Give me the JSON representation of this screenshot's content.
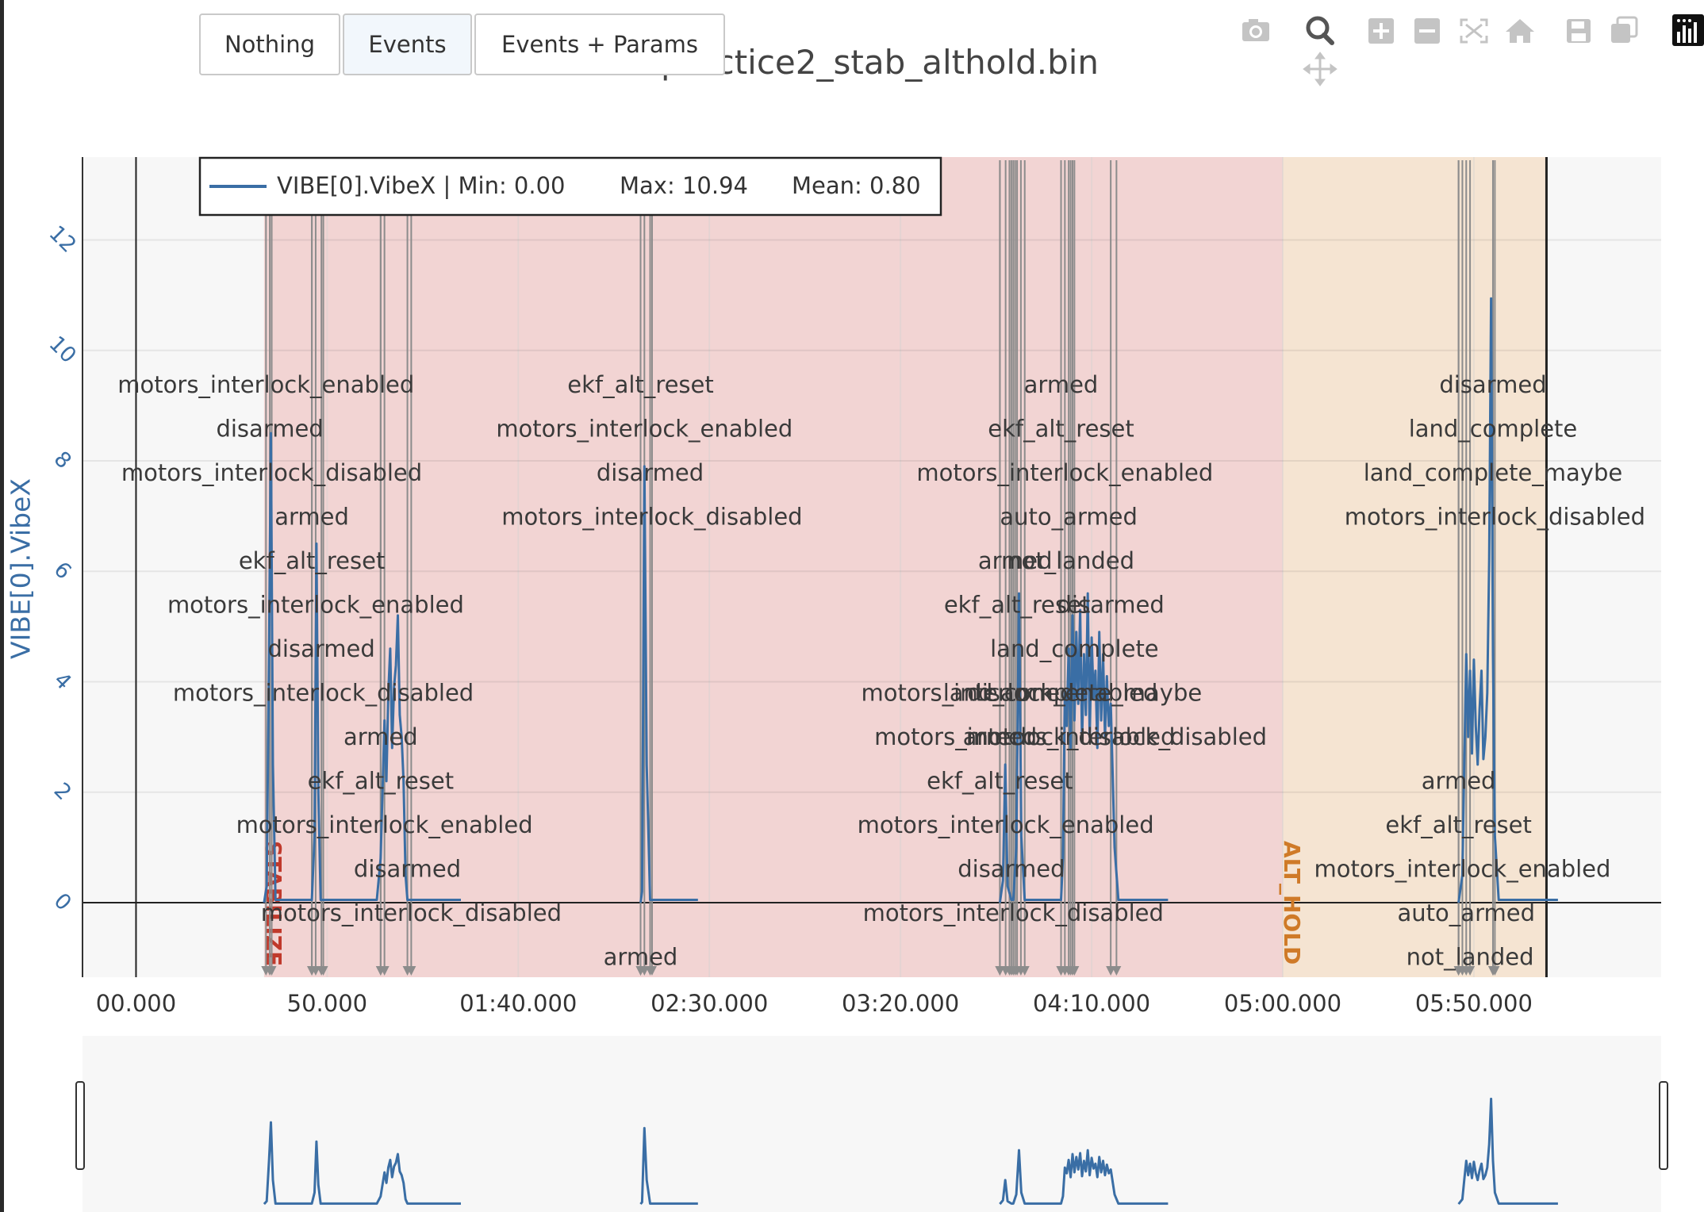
{
  "toolbar": {
    "buttons": [
      {
        "label": "Nothing",
        "active": false
      },
      {
        "label": "Events",
        "active": true
      },
      {
        "label": "Events + Params",
        "active": false
      }
    ],
    "modebar_icons": [
      "camera-icon",
      "zoom-icon",
      "pan-icon",
      "zoom-in-icon",
      "zoom-out-icon",
      "autoscale-icon",
      "home-icon",
      "save-icon",
      "compare-icon",
      "plotly-logo-icon"
    ]
  },
  "plot": {
    "title": "practice2_stab_althold.bin"
  },
  "colors": {
    "line": "#3a6ea5",
    "event_line": "#8c8c8c",
    "stabilize_band": "#f2d4d3",
    "althold_band": "#f5e4d2",
    "stabilize_label": "#c0392b",
    "althold_label": "#cf7a28",
    "plot_bg": "#f7f7f7"
  },
  "chart_data": {
    "type": "line",
    "title": "practice2_stab_althold.bin",
    "xlabel": "",
    "ylabel": "VIBE[0].VibeX",
    "xlim": [
      -14,
      399
    ],
    "ylim": [
      -1.35,
      13.5
    ],
    "x_ticks": [
      0,
      50,
      100,
      150,
      200,
      250,
      300,
      350
    ],
    "x_tick_labels": [
      "00.000",
      "50.000",
      "01:40.000",
      "02:30.000",
      "03:20.000",
      "04:10.000",
      "05:00.000",
      "05:50.000"
    ],
    "y_ticks": [
      0,
      2,
      4,
      6,
      8,
      10,
      12
    ],
    "legend": {
      "placement": "top-left",
      "series": "VIBE[0].VibeX | Min: 0.00",
      "max": "Max: 10.94",
      "mean": "Mean: 0.80"
    },
    "grid": true,
    "modes": [
      {
        "name": "STABILIZE",
        "start": 33.5,
        "end": 300
      },
      {
        "name": "ALT_HOLD",
        "start": 300,
        "end": 369
      }
    ],
    "series": [
      {
        "name": "VIBE[0].VibeX",
        "segments": [
          [
            [
              33.5,
              0
            ],
            [
              34.2,
              0.3
            ],
            [
              34.8,
              4.5
            ],
            [
              35.3,
              8.5
            ],
            [
              35.8,
              2.5
            ],
            [
              36.5,
              0.05
            ],
            [
              40,
              0.05
            ],
            [
              46,
              0.05
            ],
            [
              46.7,
              1.2
            ],
            [
              47.2,
              6.5
            ],
            [
              47.7,
              2.0
            ],
            [
              48.3,
              0.05
            ],
            [
              52,
              0.05
            ],
            [
              57,
              0.05
            ],
            [
              63,
              0.05
            ],
            [
              64,
              0.8
            ],
            [
              65,
              3.3
            ],
            [
              65.5,
              2.2
            ],
            [
              66,
              3.8
            ],
            [
              66.5,
              4.6
            ],
            [
              67,
              2.8
            ],
            [
              67.5,
              3.9
            ],
            [
              68,
              4.3
            ],
            [
              68.5,
              5.2
            ],
            [
              69,
              3.4
            ],
            [
              69.5,
              3.0
            ],
            [
              70,
              2.2
            ],
            [
              70.5,
              0.5
            ],
            [
              71,
              0.05
            ],
            [
              85,
              0.05
            ]
          ],
          [
            [
              132,
              0
            ],
            [
              132.4,
              0.2
            ],
            [
              133,
              7.9
            ],
            [
              133.6,
              2.5
            ],
            [
              134.5,
              0.05
            ],
            [
              147,
              0.05
            ]
          ],
          [
            [
              226,
              0
            ],
            [
              226.8,
              0.4
            ],
            [
              227.4,
              2.5
            ],
            [
              228,
              0.3
            ],
            [
              229,
              0.05
            ],
            [
              229.5,
              0.05
            ],
            [
              230.3,
              1.0
            ],
            [
              231,
              5.6
            ],
            [
              231.6,
              1.2
            ],
            [
              232.5,
              0.05
            ],
            [
              242,
              0.05
            ],
            [
              242.5,
              0.8
            ],
            [
              243,
              3.8
            ],
            [
              243.5,
              3.2
            ],
            [
              244,
              4.6
            ],
            [
              244.5,
              2.8
            ],
            [
              245,
              5.2
            ],
            [
              245.5,
              3.3
            ],
            [
              246,
              4.9
            ],
            [
              246.5,
              3.6
            ],
            [
              247,
              5.3
            ],
            [
              247.5,
              2.9
            ],
            [
              248,
              4.5
            ],
            [
              248.5,
              3.4
            ],
            [
              249,
              5.6
            ],
            [
              249.5,
              3.0
            ],
            [
              250,
              4.8
            ],
            [
              250.5,
              3.7
            ],
            [
              251,
              4.2
            ],
            [
              251.5,
              2.8
            ],
            [
              252,
              4.9
            ],
            [
              252.5,
              3.3
            ],
            [
              253,
              4.5
            ],
            [
              253.5,
              3.0
            ],
            [
              254,
              4.1
            ],
            [
              254.5,
              3.2
            ],
            [
              255,
              3.6
            ],
            [
              256,
              1.0
            ],
            [
              257,
              0.05
            ],
            [
              270,
              0.05
            ]
          ],
          [
            [
              346,
              0
            ],
            [
              347,
              0.5
            ],
            [
              347.5,
              2.6
            ],
            [
              348,
              4.5
            ],
            [
              348.5,
              3.0
            ],
            [
              349,
              4.2
            ],
            [
              349.5,
              2.7
            ],
            [
              350,
              4.4
            ],
            [
              350.5,
              3.2
            ],
            [
              351,
              2.5
            ],
            [
              351.5,
              3.5
            ],
            [
              352,
              4.2
            ],
            [
              352.5,
              2.6
            ],
            [
              353,
              3.0
            ],
            [
              353.5,
              3.8
            ],
            [
              354,
              6.2
            ],
            [
              354.5,
              10.94
            ],
            [
              355,
              4.5
            ],
            [
              355.5,
              1.2
            ],
            [
              356.5,
              0.05
            ],
            [
              372,
              0.05
            ]
          ]
        ]
      }
    ],
    "events": [
      {
        "x": 34.0,
        "label": "motors_interlock_enabled",
        "row": 0
      },
      {
        "x": 35.0,
        "label": "disarmed",
        "row": 1
      },
      {
        "x": 35.5,
        "label": "motors_interlock_disabled",
        "row": 2
      },
      {
        "x": 46.0,
        "label": "armed",
        "row": 3
      },
      {
        "x": 46.0,
        "label": "ekf_alt_reset",
        "row": 4
      },
      {
        "x": 47.0,
        "label": "motors_interlock_enabled",
        "row": 5
      },
      {
        "x": 48.5,
        "label": "disarmed",
        "row": 6
      },
      {
        "x": 49.0,
        "label": "motors_interlock_disabled",
        "row": 7
      },
      {
        "x": 64.0,
        "label": "armed",
        "row": 8
      },
      {
        "x": 64.0,
        "label": "ekf_alt_reset",
        "row": 9
      },
      {
        "x": 65.0,
        "label": "motors_interlock_enabled",
        "row": 10
      },
      {
        "x": 71.0,
        "label": "disarmed",
        "row": 11
      },
      {
        "x": 72.0,
        "label": "motors_interlock_disabled",
        "row": 12
      },
      {
        "x": 132.0,
        "label": "armed",
        "row": 13
      },
      {
        "x": 132.0,
        "label": "ekf_alt_reset",
        "row": 0
      },
      {
        "x": 133.0,
        "label": "motors_interlock_enabled",
        "row": 1
      },
      {
        "x": 134.5,
        "label": "disarmed",
        "row": 2
      },
      {
        "x": 135.0,
        "label": "motors_interlock_disabled",
        "row": 3
      },
      {
        "x": 226.0,
        "label": "armed",
        "row": 8
      },
      {
        "x": 226.0,
        "label": "ekf_alt_reset",
        "row": 9
      },
      {
        "x": 227.5,
        "label": "motors_interlock_enabled",
        "row": 10
      },
      {
        "x": 229.0,
        "label": "disarmed",
        "row": 11
      },
      {
        "x": 229.5,
        "label": "motors_interlock_disabled",
        "row": 12
      },
      {
        "x": 228.5,
        "label": "motors_interlock_enabled",
        "row": 7
      },
      {
        "x": 230.0,
        "label": "armed",
        "row": 4
      },
      {
        "x": 230.5,
        "label": "ekf_alt_reset",
        "row": 5
      },
      {
        "x": 231.5,
        "label": "disarmed",
        "row": 7
      },
      {
        "x": 232.5,
        "label": "motors_interlock_disabled",
        "row": 8
      },
      {
        "x": 242.0,
        "label": "armed",
        "row": 0
      },
      {
        "x": 242.0,
        "label": "ekf_alt_reset",
        "row": 1
      },
      {
        "x": 243.0,
        "label": "motors_interlock_enabled",
        "row": 2
      },
      {
        "x": 244.0,
        "label": "auto_armed",
        "row": 3
      },
      {
        "x": 244.5,
        "label": "not_landed",
        "row": 4
      },
      {
        "x": 255.0,
        "label": "disarmed",
        "row": 5
      },
      {
        "x": 245.5,
        "label": "land_complete",
        "row": 6
      },
      {
        "x": 245.0,
        "label": "land_complete_maybe",
        "row": 7
      },
      {
        "x": 256.5,
        "label": "motors_interlock_disabled",
        "row": 8
      },
      {
        "x": 346.0,
        "label": "armed",
        "row": 9
      },
      {
        "x": 346.0,
        "label": "ekf_alt_reset",
        "row": 10
      },
      {
        "x": 347.0,
        "label": "motors_interlock_enabled",
        "row": 11
      },
      {
        "x": 348.0,
        "label": "auto_armed",
        "row": 12
      },
      {
        "x": 349.0,
        "label": "not_landed",
        "row": 13
      },
      {
        "x": 355.0,
        "label": "disarmed",
        "row": 0
      },
      {
        "x": 355.0,
        "label": "land_complete",
        "row": 1
      },
      {
        "x": 355.0,
        "label": "land_complete_maybe",
        "row": 2
      },
      {
        "x": 355.5,
        "label": "motors_interlock_disabled",
        "row": 3
      }
    ]
  }
}
